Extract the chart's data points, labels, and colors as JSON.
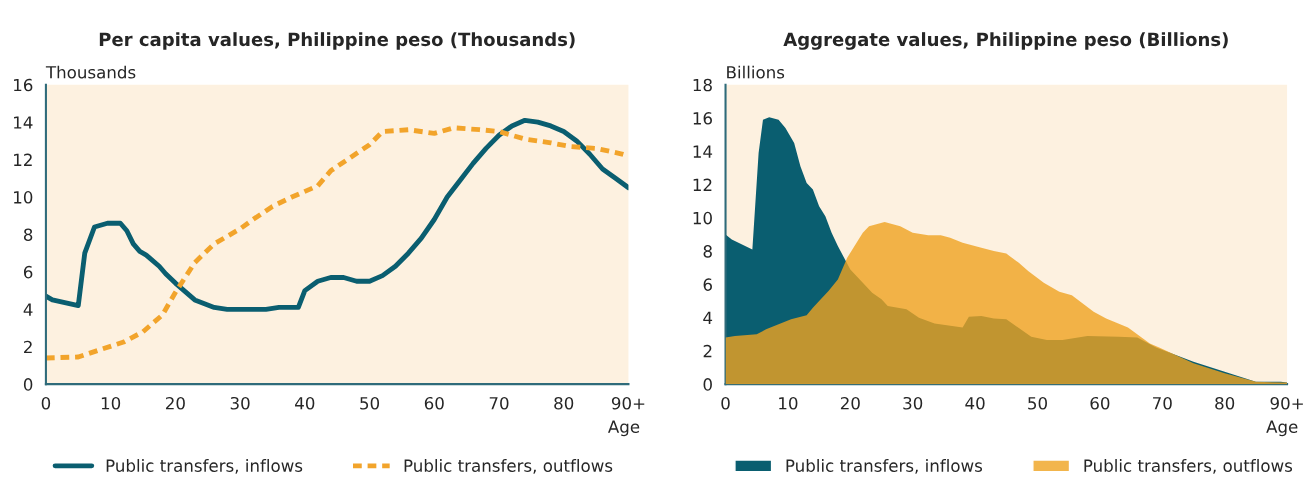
{
  "chart_data": [
    {
      "type": "line",
      "title": "Per capita values, Philippine peso (Thousands)",
      "ylabel": "Thousands",
      "xlabel": "Age",
      "xlim": [
        0,
        90
      ],
      "xticks": [
        0,
        10,
        20,
        30,
        40,
        50,
        60,
        70,
        80,
        {
          "value": 90,
          "label": "90+"
        }
      ],
      "ylim": [
        0,
        16
      ],
      "yticks": [
        0,
        2,
        4,
        6,
        8,
        10,
        12,
        14,
        16
      ],
      "grid": false,
      "legend": "bottom",
      "series": [
        {
          "name": "Public transfers, inflows",
          "color": "#0a5e70",
          "line_style": "solid",
          "x": [
            0,
            1,
            5,
            6,
            7.5,
            9.5,
            11.5,
            12.5,
            13.5,
            14.5,
            15.5,
            17.5,
            18.5,
            20,
            23,
            26,
            28,
            34,
            36,
            39,
            40,
            42,
            44,
            46,
            48,
            50,
            52,
            54,
            56,
            58,
            60,
            62,
            64,
            66,
            68,
            70,
            72,
            74,
            76,
            78,
            80,
            82,
            84,
            86,
            88,
            90
          ],
          "values": [
            4.7,
            4.5,
            4.2,
            7.0,
            8.4,
            8.6,
            8.6,
            8.2,
            7.5,
            7.1,
            6.9,
            6.3,
            5.9,
            5.4,
            4.5,
            4.1,
            4.0,
            4.0,
            4.1,
            4.1,
            5.0,
            5.5,
            5.7,
            5.7,
            5.5,
            5.5,
            5.8,
            6.3,
            7.0,
            7.8,
            8.8,
            10.0,
            10.9,
            11.8,
            12.6,
            13.3,
            13.8,
            14.1,
            14.0,
            13.8,
            13.5,
            13.0,
            12.3,
            11.5,
            11.0,
            10.5
          ]
        },
        {
          "name": "Public transfers, outflows",
          "color": "#f2a42b",
          "line_style": "dashed",
          "x": [
            0,
            5,
            8,
            12,
            15,
            18,
            20,
            23,
            26,
            30,
            32,
            35,
            38,
            42,
            44,
            47,
            50,
            52,
            56,
            60,
            63,
            67,
            70,
            74,
            78,
            81,
            85,
            89,
            90
          ],
          "values": [
            1.4,
            1.45,
            1.8,
            2.25,
            2.8,
            3.7,
            4.9,
            6.5,
            7.5,
            8.3,
            8.8,
            9.5,
            10.0,
            10.6,
            11.4,
            12.1,
            12.8,
            13.5,
            13.6,
            13.4,
            13.7,
            13.6,
            13.5,
            13.1,
            12.9,
            12.7,
            12.6,
            12.3,
            12.2
          ]
        }
      ]
    },
    {
      "type": "area",
      "title": "Aggregate values, Philippine peso (Billions)",
      "ylabel": "Billions",
      "xlabel": "Age",
      "xlim": [
        0,
        90
      ],
      "xticks": [
        0,
        10,
        20,
        30,
        40,
        50,
        60,
        70,
        80,
        {
          "value": 90,
          "label": "90+"
        }
      ],
      "ylim": [
        0,
        18
      ],
      "yticks": [
        0,
        2,
        4,
        6,
        8,
        10,
        12,
        14,
        16,
        18
      ],
      "grid": false,
      "legend": "bottom",
      "series": [
        {
          "name": "Public transfers, inflows",
          "color": "#0a5e70",
          "x": [
            0,
            1,
            4.3,
            5.3,
            6,
            7,
            8.5,
            9.6,
            11,
            12,
            13,
            14,
            15,
            16,
            17,
            18,
            19,
            20,
            22,
            23.5,
            25,
            26,
            29,
            31,
            33.5,
            38,
            39,
            41,
            43,
            45,
            49,
            51.5,
            54,
            58,
            63,
            66,
            69,
            75,
            80,
            85,
            89,
            90
          ],
          "values": [
            9.0,
            8.7,
            8.1,
            13.9,
            15.9,
            16.05,
            15.9,
            15.4,
            14.5,
            13.1,
            12.1,
            11.7,
            10.7,
            10.1,
            9.1,
            8.3,
            7.6,
            6.9,
            6.1,
            5.5,
            5.1,
            4.7,
            4.5,
            4.0,
            3.65,
            3.4,
            4.05,
            4.1,
            3.95,
            3.9,
            2.85,
            2.65,
            2.65,
            2.9,
            2.85,
            2.8,
            2.2,
            1.35,
            0.75,
            0.14,
            0.15,
            0.1
          ]
        },
        {
          "name": "Public transfers, outflows",
          "color": "#efa320",
          "x": [
            0,
            1.5,
            5,
            6.5,
            8.5,
            10.5,
            13,
            14,
            15,
            16.5,
            18,
            19.5,
            21,
            22,
            23,
            25.5,
            28,
            30,
            32.5,
            34.5,
            36,
            38,
            41,
            43,
            45,
            47,
            48.5,
            51,
            53.5,
            55.5,
            59,
            61,
            64.5,
            68,
            69.5,
            75,
            80,
            85,
            90
          ],
          "values": [
            2.8,
            2.9,
            3.0,
            3.3,
            3.6,
            3.9,
            4.15,
            4.6,
            5.0,
            5.6,
            6.3,
            7.6,
            8.5,
            9.1,
            9.5,
            9.75,
            9.5,
            9.1,
            8.95,
            8.95,
            8.8,
            8.5,
            8.2,
            8.0,
            7.85,
            7.3,
            6.8,
            6.1,
            5.55,
            5.35,
            4.35,
            3.95,
            3.4,
            2.45,
            2.2,
            1.25,
            0.65,
            0.14,
            0.1
          ]
        }
      ]
    }
  ]
}
